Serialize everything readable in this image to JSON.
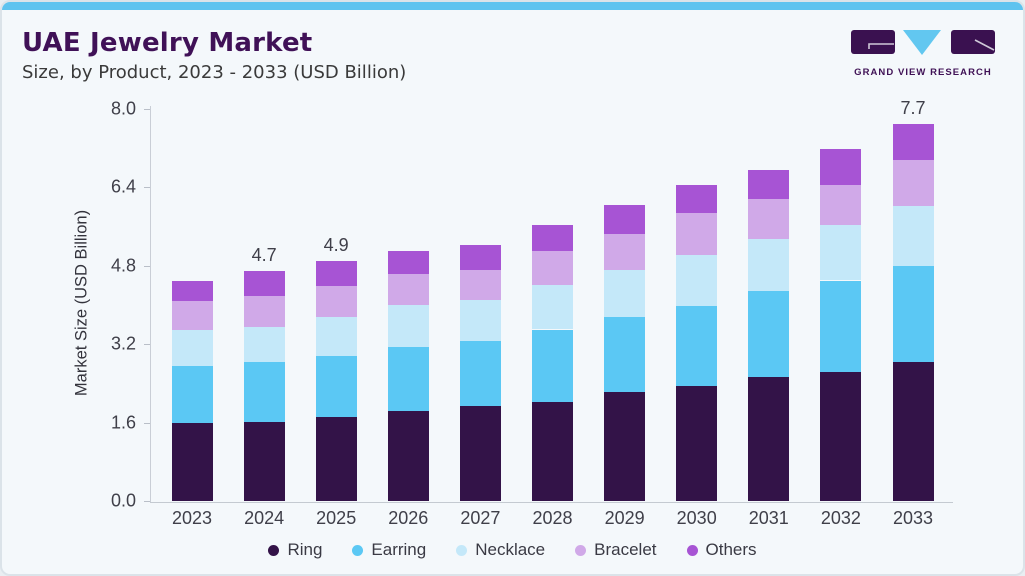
{
  "header": {
    "title": "UAE Jewelry Market",
    "subtitle": "Size, by Product, 2023 - 2033 (USD Billion)"
  },
  "logo": {
    "text": "GRAND VIEW RESEARCH",
    "block_color": "#3a1150",
    "triangle_color": "#62c7f0"
  },
  "colors": {
    "accent_top_bar": "#5ec3ef",
    "card_background": "#f4f8fb",
    "card_border": "#dbe3e9",
    "title_text": "#401157",
    "body_text": "#3a3a3a",
    "axis_text": "#3f3f49",
    "axis_line": "#c9ced6"
  },
  "chart_data": {
    "type": "bar",
    "stacked": true,
    "title": "UAE Jewelry Market Size, by Product, 2023 - 2033 (USD Billion)",
    "categories": [
      "2023",
      "2024",
      "2025",
      "2026",
      "2027",
      "2028",
      "2029",
      "2030",
      "2031",
      "2032",
      "2033"
    ],
    "series": [
      {
        "name": "Ring",
        "color": "#331348",
        "values": [
          1.6,
          1.61,
          1.71,
          1.83,
          1.94,
          2.02,
          2.22,
          2.34,
          2.53,
          2.63,
          2.84
        ]
      },
      {
        "name": "Earring",
        "color": "#5bc8f4",
        "values": [
          1.15,
          1.23,
          1.25,
          1.32,
          1.33,
          1.48,
          1.54,
          1.63,
          1.76,
          1.87,
          1.96
        ]
      },
      {
        "name": "Necklace",
        "color": "#c4e8f9",
        "values": [
          0.74,
          0.71,
          0.8,
          0.84,
          0.84,
          0.9,
          0.95,
          1.06,
          1.05,
          1.13,
          1.22
        ]
      },
      {
        "name": "Bracelet",
        "color": "#d0a9e8",
        "values": [
          0.6,
          0.63,
          0.63,
          0.64,
          0.61,
          0.71,
          0.73,
          0.84,
          0.83,
          0.82,
          0.93
        ]
      },
      {
        "name": "Others",
        "color": "#a754d4",
        "values": [
          0.4,
          0.52,
          0.51,
          0.48,
          0.5,
          0.52,
          0.6,
          0.58,
          0.59,
          0.73,
          0.75
        ]
      }
    ],
    "bar_total_labels": [
      "",
      "4.7",
      "4.9",
      "",
      "",
      "",
      "",
      "",
      "",
      "",
      "7.7"
    ],
    "ylabel": "Market Size (USD Billion)",
    "yticks": [
      "0.0",
      "1.6",
      "3.2",
      "4.8",
      "6.4",
      "8.0"
    ],
    "ylim": [
      0,
      8.0
    ],
    "grid": false,
    "legend_position": "bottom",
    "legend": [
      "Ring",
      "Earring",
      "Necklace",
      "Bracelet",
      "Others"
    ]
  }
}
